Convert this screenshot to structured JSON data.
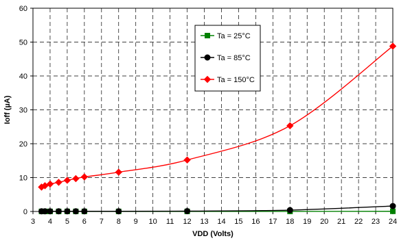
{
  "chart_data": {
    "type": "line",
    "title": "",
    "xlabel": "VDD (Volts)",
    "ylabel": "Ioff (µA)",
    "xlim": [
      3,
      24
    ],
    "ylim": [
      0,
      60
    ],
    "x_ticks": [
      3,
      4,
      5,
      6,
      7,
      8,
      9,
      10,
      11,
      12,
      13,
      14,
      15,
      16,
      17,
      18,
      19,
      20,
      21,
      22,
      23,
      24
    ],
    "y_ticks": [
      0,
      10,
      20,
      30,
      40,
      50,
      60
    ],
    "grid": "dashed major gridlines both axes",
    "legend_placement": "top-center (inside plot)",
    "series": [
      {
        "name": "Ta = 25°C",
        "color": "#008000",
        "marker": "square",
        "x": [
          3.5,
          3.7,
          4,
          4.5,
          5,
          5.5,
          6,
          8,
          12,
          18,
          24
        ],
        "y": [
          0.02,
          0.02,
          0.02,
          0.02,
          0.02,
          0.02,
          0.02,
          0.02,
          0.02,
          0.02,
          0.05
        ]
      },
      {
        "name": "Ta = 85°C",
        "color": "#000000",
        "marker": "circle",
        "x": [
          3.5,
          3.7,
          4,
          4.5,
          5,
          5.5,
          6,
          8,
          12,
          18,
          24
        ],
        "y": [
          0.05,
          0.05,
          0.05,
          0.05,
          0.05,
          0.05,
          0.05,
          0.05,
          0.1,
          0.4,
          1.6
        ]
      },
      {
        "name": "Ta = 150°C",
        "color": "#ff0000",
        "marker": "diamond",
        "x": [
          3.5,
          3.7,
          4,
          4.5,
          5,
          5.5,
          6,
          8,
          12,
          18,
          24
        ],
        "y": [
          7.2,
          7.6,
          8.1,
          8.6,
          9.2,
          9.7,
          10.2,
          11.6,
          15.2,
          25.3,
          48.8
        ]
      }
    ]
  }
}
